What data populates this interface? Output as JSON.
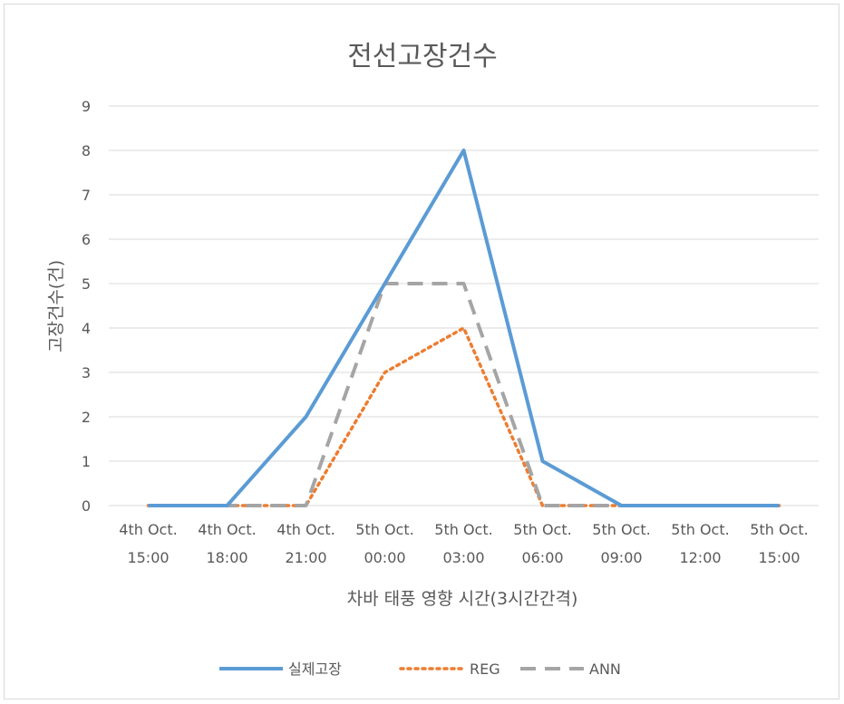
{
  "chart_data": {
    "type": "line",
    "title": "전선고장건수",
    "xlabel": "차바 태풍 영향 시간(3시간간격)",
    "ylabel": "고장건수(건)",
    "categories": [
      [
        "4th Oct.",
        "15:00"
      ],
      [
        "4th Oct.",
        "18:00"
      ],
      [
        "4th Oct.",
        "21:00"
      ],
      [
        "5th Oct.",
        "00:00"
      ],
      [
        "5th Oct.",
        "03:00"
      ],
      [
        "5th Oct.",
        "06:00"
      ],
      [
        "5th Oct.",
        "09:00"
      ],
      [
        "5th Oct.",
        "12:00"
      ],
      [
        "5th Oct.",
        "15:00"
      ]
    ],
    "ylim": [
      0,
      9
    ],
    "yticks": [
      0,
      1,
      2,
      3,
      4,
      5,
      6,
      7,
      8,
      9
    ],
    "grid": true,
    "legend_position": "bottom",
    "series": [
      {
        "name": "실제고장",
        "values": [
          0,
          0,
          2,
          5,
          8,
          1,
          0,
          0,
          0
        ],
        "color": "#5b9bd5",
        "style": "solid"
      },
      {
        "name": "REG",
        "values": [
          0,
          0,
          0,
          3,
          4,
          0,
          0,
          0,
          0
        ],
        "color": "#ed7d31",
        "style": "dotted"
      },
      {
        "name": "ANN",
        "values": [
          0,
          0,
          0,
          5,
          5,
          0,
          0,
          0,
          0
        ],
        "color": "#a5a5a5",
        "style": "dashed"
      }
    ]
  }
}
